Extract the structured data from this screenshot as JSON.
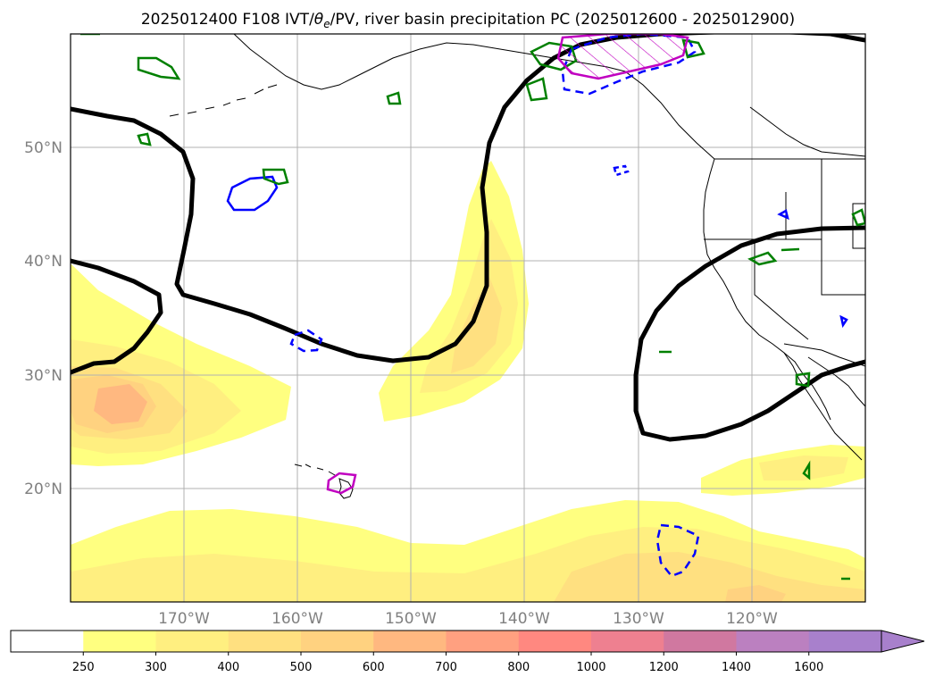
{
  "title": "2025012400 F108 IVT/θe/PV, river basin precipitation PC (2025012600 - 2025012900)",
  "title_parts": {
    "pre": "2025012400 F108 IVT/",
    "theta": "θ",
    "sub": "e",
    "post": "/PV, river basin precipitation PC (2025012600 - 2025012900)"
  },
  "map": {
    "lon_range": [
      -180,
      -110
    ],
    "lat_range": [
      10,
      60
    ],
    "lat_ticks": [
      {
        "value": 20,
        "label": "20°N"
      },
      {
        "value": 30,
        "label": "30°N"
      },
      {
        "value": 40,
        "label": "40°N"
      },
      {
        "value": 50,
        "label": "50°N"
      }
    ],
    "lon_ticks": [
      {
        "value": -170,
        "label": "170°W"
      },
      {
        "value": -160,
        "label": "160°W"
      },
      {
        "value": -150,
        "label": "150°W"
      },
      {
        "value": -140,
        "label": "140°W"
      },
      {
        "value": -130,
        "label": "130°W"
      },
      {
        "value": -120,
        "label": "120°W"
      }
    ],
    "gridlines": true
  },
  "colorbar": {
    "levels": [
      "250",
      "300",
      "400",
      "500",
      "600",
      "700",
      "800",
      "1000",
      "1200",
      "1400",
      "1600"
    ],
    "colors": [
      "#ffffff",
      "#ffff80",
      "#ffef80",
      "#ffe080",
      "#ffd280",
      "#ffb880",
      "#ffa080",
      "#ff8880",
      "#ee8090",
      "#d078a0",
      "#bb80c0",
      "#a880cc"
    ],
    "extend": "max"
  },
  "colors": {
    "theta_e_contour": "#000000",
    "pv_contour_positive": "#0000ff",
    "pv_contour_negative": "#0000ff",
    "green_contour": "#008000",
    "magenta_contour": "#c000c0",
    "coastline": "#000000",
    "grid": "#b0b0b0"
  }
}
